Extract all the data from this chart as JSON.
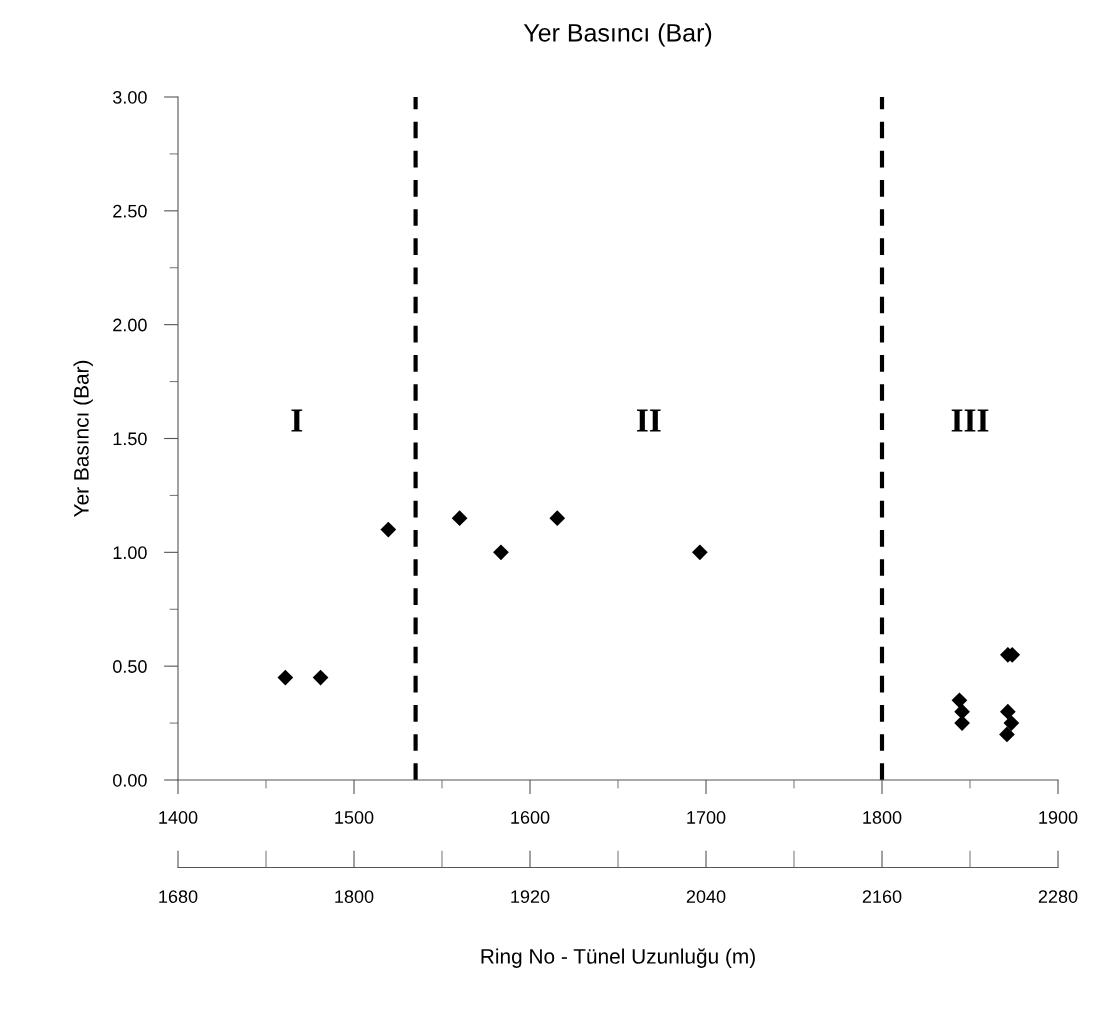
{
  "chart_data": {
    "type": "scatter",
    "title": "Yer Basıncı (Bar)",
    "ylabel": "Yer Basıncı (Bar)",
    "xlabel": "Ring No - Tünel Uzunluğu (m)",
    "x": [
      1461,
      1481,
      1519.5,
      1560,
      1583.5,
      1615.5,
      1696.5,
      1844,
      1845.5,
      1845.5,
      1871.5,
      1874,
      1871.5,
      1873.5,
      1871
    ],
    "values": [
      0.45,
      0.45,
      1.1,
      1.15,
      1.0,
      1.15,
      1.0,
      0.35,
      0.3,
      0.25,
      0.55,
      0.55,
      0.3,
      0.25,
      0.2
    ],
    "color": "#000000",
    "marker": "diamond",
    "grid": false,
    "legend": false,
    "xlim": [
      1400,
      1900
    ],
    "xticks": [
      1400,
      1500,
      1600,
      1700,
      1800,
      1900
    ],
    "x2lim": [
      1680,
      2280
    ],
    "x2ticks": [
      1680,
      1800,
      1920,
      2040,
      2160,
      2280
    ],
    "ylim": [
      0,
      3
    ],
    "yticks": [
      {
        "value": 0,
        "label": "0.00"
      },
      {
        "value": 0.5,
        "label": "0.50"
      },
      {
        "value": 1,
        "label": "1.00"
      },
      {
        "value": 1.5,
        "label": "1.50"
      },
      {
        "value": 2,
        "label": "2.00"
      },
      {
        "value": 2.5,
        "label": "2.50"
      },
      {
        "value": 3,
        "label": "3.00"
      }
    ],
    "ref_lines": [
      {
        "axis": "x",
        "value": 1535,
        "color": "#000000",
        "line_style": "dashed"
      },
      {
        "axis": "x",
        "value": 1800,
        "color": "#000000",
        "line_style": "dashed"
      }
    ],
    "annotations": [
      "I",
      "II",
      "III"
    ]
  }
}
